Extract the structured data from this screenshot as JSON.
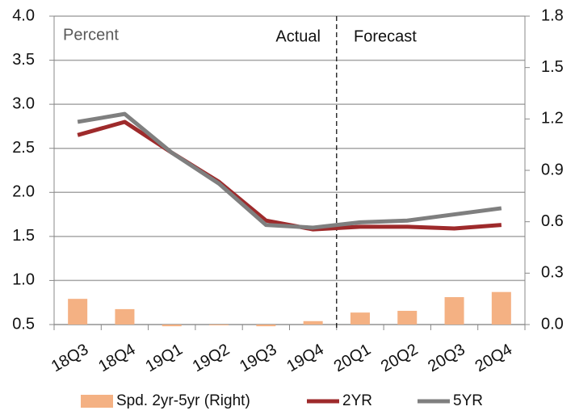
{
  "chart_data": {
    "type": "bar-line",
    "annotations": {
      "unit": "Percent",
      "actual": "Actual",
      "forecast": "Forecast"
    },
    "categories": [
      "18Q3",
      "18Q4",
      "19Q1",
      "19Q2",
      "19Q3",
      "19Q4",
      "20Q1",
      "20Q2",
      "20Q3",
      "20Q4"
    ],
    "series": [
      {
        "name": "Spd. 2yr-5yr (Right)",
        "type": "bar",
        "axis": "y2",
        "color": "#f4b183",
        "values": [
          0.15,
          0.09,
          -0.01,
          0,
          -0.01,
          0.02,
          0.07,
          0.08,
          0.16,
          0.19
        ]
      },
      {
        "name": "2YR",
        "type": "line",
        "color": "#9e2a2b",
        "values": [
          2.65,
          2.8,
          2.45,
          2.12,
          1.68,
          1.58,
          1.61,
          1.61,
          1.59,
          1.63
        ]
      },
      {
        "name": "5YR",
        "type": "line",
        "color": "#7f7f7f",
        "values": [
          2.8,
          2.89,
          2.45,
          2.1,
          1.63,
          1.6,
          1.66,
          1.68,
          1.75,
          1.82
        ]
      }
    ],
    "ylim": [
      0.5,
      4.0
    ],
    "yticks": [
      0.5,
      {
        "value": 1,
        "label": "1.0"
      },
      1.5,
      {
        "value": 2,
        "label": "2.0"
      },
      2.5,
      {
        "value": 3,
        "label": "3.0"
      },
      3.5,
      {
        "value": 4,
        "label": "4.0"
      }
    ],
    "y2lim": [
      0,
      1.8
    ],
    "y2ticks": [
      {
        "value": 0,
        "label": "0.0"
      },
      0.3,
      0.6,
      0.9,
      1.2,
      1.5,
      1.8
    ],
    "grid": true,
    "legend": "bottom"
  }
}
